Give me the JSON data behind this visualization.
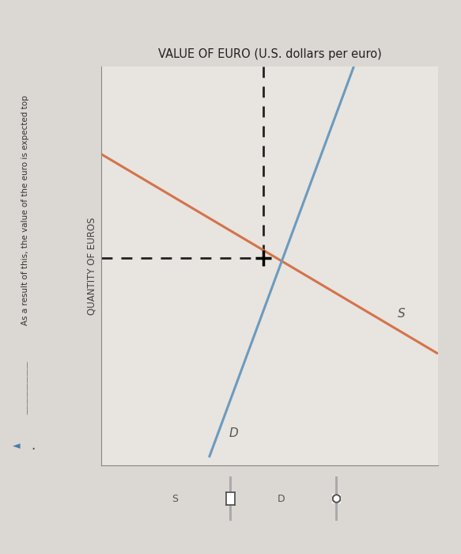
{
  "title": "VALUE OF EURO (U.S. dollars per euro)",
  "ylabel": "QUANTITY OF EUROS",
  "background_color": "#dbd7d2",
  "axes_bg_color": "#e8e4df",
  "title_fontsize": 10.5,
  "ylabel_fontsize": 8.5,
  "supply_color": "#d4734a",
  "demand_color": "#6b9bbf",
  "dashed_color": "#222222",
  "label_S": "S",
  "label_D": "D",
  "xlim": [
    0,
    10
  ],
  "ylim": [
    0,
    10
  ],
  "equilibrium_x": 4.8,
  "equilibrium_y": 5.2,
  "supply_x1": 0.0,
  "supply_y1": 7.8,
  "supply_x2": 10.0,
  "supply_y2": 2.8,
  "demand_x1": 3.2,
  "demand_y1": 0.2,
  "demand_x2": 7.5,
  "demand_y2": 10.0,
  "side_text": "As a result of this, the value of the euro is expected top",
  "side_text_fontsize": 7.5,
  "arrow_text": "◄ .",
  "slider_color": "#aaaaaa",
  "slider_marker_color": "#555555"
}
